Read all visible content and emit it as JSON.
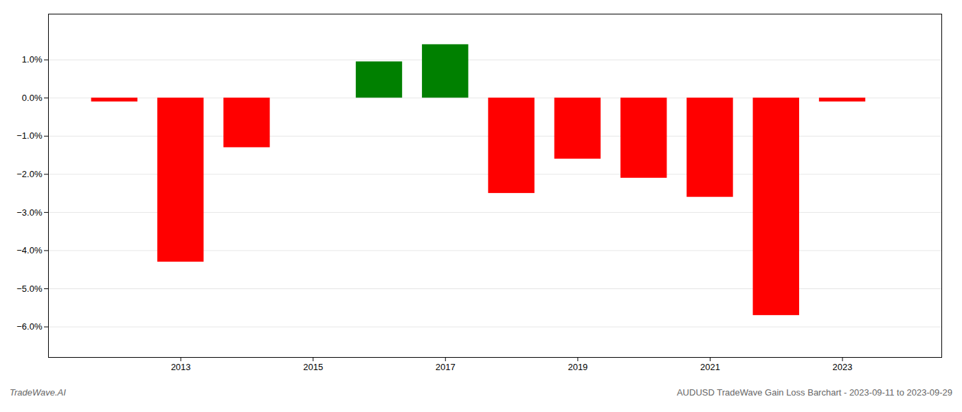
{
  "chart_data": {
    "type": "bar",
    "title": "AUDUSD TradeWave Gain Loss Barchart - 2023-09-11 to 2023-09-29",
    "annotations": [
      "TradeWave.AI"
    ],
    "x": [
      2012,
      2013,
      2014,
      2016,
      2017,
      2018,
      2019,
      2020,
      2021,
      2022,
      2023
    ],
    "values": [
      -0.001,
      -0.043,
      -0.013,
      0.0095,
      0.014,
      -0.025,
      -0.016,
      -0.021,
      -0.026,
      -0.057,
      -0.001
    ],
    "colors": [
      "#ff0000",
      "#ff0000",
      "#ff0000",
      "#008000",
      "#008000",
      "#ff0000",
      "#ff0000",
      "#ff0000",
      "#ff0000",
      "#ff0000",
      "#ff0000"
    ],
    "xlim": [
      2011.0,
      2024.5
    ],
    "xticks": [
      2013,
      2015,
      2017,
      2019,
      2021,
      2023
    ],
    "ylim": [
      -0.068,
      0.022
    ],
    "yticks": [
      {
        "value": -0.06,
        "label": "−6.0%"
      },
      {
        "value": -0.05,
        "label": "−5.0%"
      },
      {
        "value": -0.04,
        "label": "−4.0%"
      },
      {
        "value": -0.03,
        "label": "−3.0%"
      },
      {
        "value": -0.02,
        "label": "−2.0%"
      },
      {
        "value": -0.01,
        "label": "−1.0%"
      },
      {
        "value": 0.0,
        "label": "0.0%"
      },
      {
        "value": 0.01,
        "label": "1.0%"
      }
    ],
    "grid": true
  }
}
